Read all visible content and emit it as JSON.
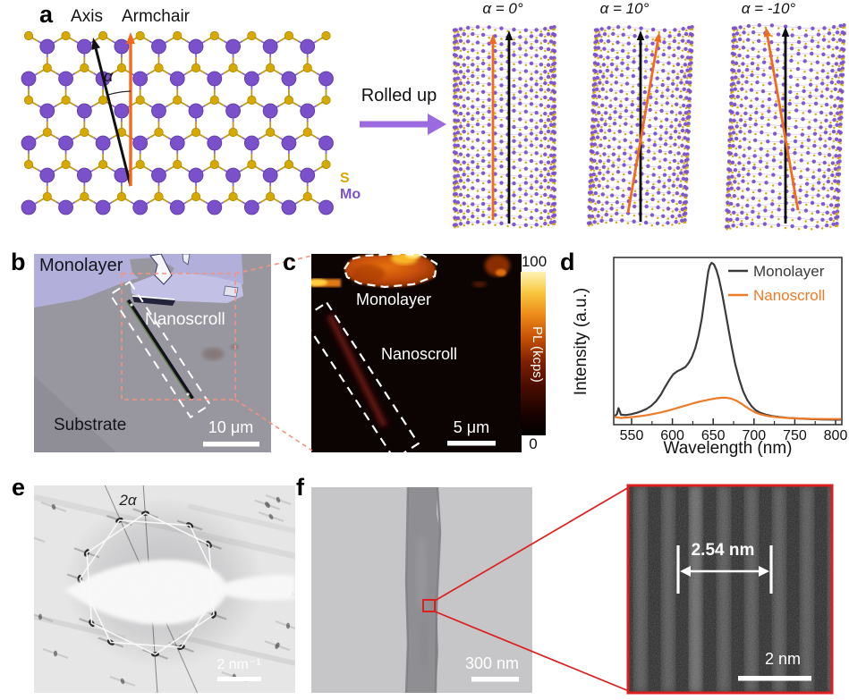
{
  "panels": {
    "a": "a",
    "b": "b",
    "c": "c",
    "d": "d",
    "e": "e",
    "f": "f"
  },
  "panel_a": {
    "axis_label": "Axis",
    "armchair_label": "Armchair",
    "alpha": "α",
    "rolled_up": "Rolled up",
    "legend_s": "S",
    "legend_mo": "Mo",
    "scroll_labels": [
      "α = 0°",
      "α = 10°",
      "α = -10°"
    ],
    "colors": {
      "mo": "#7b50cb",
      "s": "#d6a900",
      "armchair": "#f26a1e",
      "axis": "#111111",
      "rolled_arrow": "#9a6ade"
    }
  },
  "panel_b": {
    "monolayer": "Monolayer",
    "nanoscroll": "Nanoscroll",
    "substrate": "Substrate",
    "scale_bar": "10 μm"
  },
  "panel_c": {
    "monolayer": "Monolayer",
    "nanoscroll": "Nanoscroll",
    "scale_bar": "5 μm",
    "colorbar": {
      "max": "100",
      "min": "0",
      "title": "PL (kcps)"
    }
  },
  "chart_data": {
    "type": "line",
    "xlabel": "Wavelength (nm)",
    "ylabel": "Intensity (a.u.)",
    "xlim": [
      529,
      808
    ],
    "ylim": [
      0,
      1.05
    ],
    "xticks": [
      550,
      600,
      650,
      700,
      750,
      800
    ],
    "xticks_minor": [
      575,
      625,
      675,
      725,
      775
    ],
    "grid": false,
    "legend_position": "top-right",
    "series": [
      {
        "name": "Monolayer",
        "color": "#3b3b3b",
        "x": [
          529,
          532,
          534,
          537,
          543,
          550,
          556,
          562,
          568,
          574,
          580,
          586,
          591,
          596,
          601,
          606,
          611,
          616,
          620,
          624,
          628,
          632,
          636,
          639,
          642,
          644,
          646,
          648,
          651,
          654,
          657,
          661,
          665,
          669,
          673,
          677,
          682,
          687,
          692,
          697,
          702,
          708,
          714,
          722,
          730,
          740,
          752,
          766,
          782,
          800,
          808
        ],
        "y": [
          0.03,
          0.044,
          0.082,
          0.04,
          0.038,
          0.044,
          0.052,
          0.062,
          0.076,
          0.096,
          0.126,
          0.168,
          0.215,
          0.258,
          0.295,
          0.315,
          0.327,
          0.342,
          0.368,
          0.405,
          0.46,
          0.54,
          0.645,
          0.76,
          0.875,
          0.945,
          0.985,
          1.0,
          0.99,
          0.955,
          0.9,
          0.805,
          0.69,
          0.575,
          0.46,
          0.36,
          0.262,
          0.185,
          0.131,
          0.094,
          0.069,
          0.052,
          0.041,
          0.032,
          0.026,
          0.021,
          0.017,
          0.013,
          0.011,
          0.009,
          0.009
        ]
      },
      {
        "name": "Nanoscroll",
        "color": "#ef7b28",
        "x": [
          529,
          536,
          546,
          556,
          566,
          576,
          586,
          596,
          606,
          616,
          626,
          636,
          646,
          654,
          660,
          666,
          672,
          678,
          684,
          690,
          696,
          702,
          710,
          718,
          728,
          740,
          754,
          770,
          788,
          808
        ],
        "y": [
          0.026,
          0.02,
          0.023,
          0.028,
          0.035,
          0.044,
          0.055,
          0.068,
          0.083,
          0.098,
          0.113,
          0.126,
          0.137,
          0.144,
          0.147,
          0.148,
          0.142,
          0.13,
          0.112,
          0.091,
          0.07,
          0.053,
          0.04,
          0.031,
          0.025,
          0.02,
          0.017,
          0.014,
          0.013,
          0.013
        ]
      }
    ]
  },
  "panel_e": {
    "angle_label": "2α",
    "scale_bar": "2 nm⁻¹"
  },
  "panel_f": {
    "scale_bar": "300 nm",
    "inset": {
      "measurement": "2.54 nm",
      "scale_bar": "2 nm"
    }
  }
}
